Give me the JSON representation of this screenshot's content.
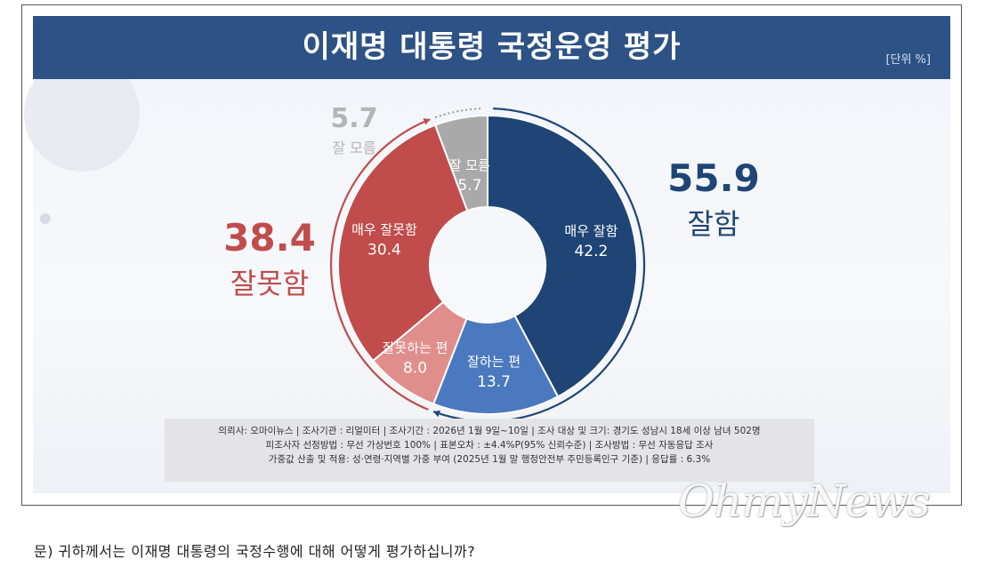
{
  "title": "이재명 대통령 국정운영 평가",
  "unit": "[단위 %]",
  "chart_data": {
    "type": "pie",
    "donut": true,
    "title": "이재명 대통령 국정운영 평가",
    "unit": "[단위 %]",
    "slices": [
      {
        "label": "매우 잘함",
        "value": 42.2,
        "color": "#1f4577"
      },
      {
        "label": "잘하는 편",
        "value": 13.7,
        "color": "#4a79bf"
      },
      {
        "label": "잘못하는 편",
        "value": 8.0,
        "color": "#e08e8b"
      },
      {
        "label": "매우 잘못함",
        "value": 30.4,
        "color": "#c04c4b"
      },
      {
        "label": "잘 모름",
        "value": 5.7,
        "color": "#a9a9a9"
      }
    ],
    "groups": [
      {
        "label": "잘함",
        "value": "55.9",
        "color": "#1f4577"
      },
      {
        "label": "잘못함",
        "value": "38.4",
        "color": "#c04c4b"
      },
      {
        "label": "잘 모름",
        "value": "5.7",
        "color": "#b4b4b4"
      }
    ]
  },
  "info": {
    "line1": "의뢰사: 오마이뉴스 | 조사기관 : 리얼미터  |  조사기간 : 2026년 1월 9일~10일 | 조사 대상 및 크기: 경기도 성남시 18세 이상 남녀 502명",
    "line2": "피조사자 선정방법 : 무선 가상번호 100% | 표본오차 : ±4.4%P(95% 신뢰수준) | 조사방법 : 무선 자동응답 조사",
    "line3": "가중값 산출 및 적용: 성·연령·지역별 가중 부여 (2025년 1월 말 행정안전부 주민등록인구  기준) | 응답률 : 6.3%"
  },
  "question": "문) 귀하께서는 이재명 대통령의 국정수행에 대해 어떻게 평가하십니까?",
  "watermark": "OhmyNews"
}
